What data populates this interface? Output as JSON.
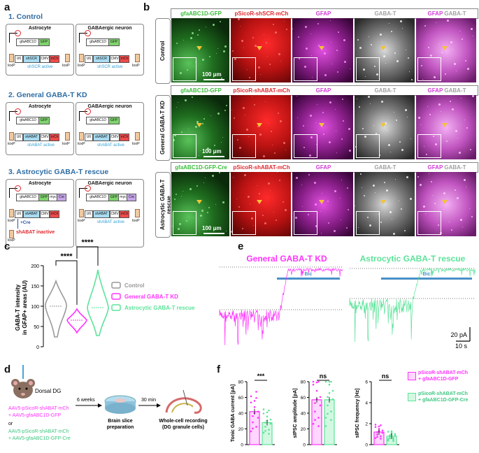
{
  "colors": {
    "blue_heading": "#2e6da4",
    "gfp_green": "#6bd36b",
    "mch_red": "#e0282e",
    "gfap_magenta": "#d23cd6",
    "gabat_grey": "#a0a0a0",
    "kd_magenta": "#ff33ff",
    "rescue_green": "#5de39a",
    "control_grey": "#999999",
    "bic_blue": "#4a90c8",
    "arrow_yellow": "#f3c335"
  },
  "panel_a": {
    "label": "a",
    "sections": [
      {
        "title": "1. Control",
        "left": {
          "cell": "Astrocyte",
          "top_construct": "gfaABC1D",
          "top_gene": "GFP",
          "bottom": [
            "U6",
            "shSCR",
            "CMV",
            "mCh"
          ],
          "loxp_left": "loxP",
          "loxp_right": "loxP",
          "status": "shSCR active"
        },
        "right": {
          "cell": "GABAergic neuron",
          "top_construct": "gfaABC1D",
          "top_gene": "GFP",
          "bottom": [
            "U6",
            "shSCR",
            "CMV",
            "mCh"
          ],
          "loxp_left": "loxP",
          "loxp_right": "loxP",
          "status": "shSCR active"
        }
      },
      {
        "title": "2. General GABA-T KD",
        "left": {
          "cell": "Astrocyte",
          "top_construct": "gfaABC1D",
          "top_gene": "GFP",
          "bottom": [
            "U6",
            "shABAT",
            "CMV",
            "mCh"
          ],
          "loxp_left": "loxP",
          "loxp_right": "loxP",
          "status": "shABAT active"
        },
        "right": {
          "cell": "GABAergic neuron",
          "top_construct": "gfaABC1D",
          "top_gene": "GFP",
          "bottom": [
            "U6",
            "shABAT",
            "CMV",
            "mCh"
          ],
          "loxp_left": "loxP",
          "loxp_right": "loxP",
          "status": "shABAT active"
        }
      },
      {
        "title": "3. Astrocytic GABA-T rescue",
        "left": {
          "cell": "Astrocyte",
          "top_construct": "gfaABC1D",
          "top_gene": "GFP",
          "top_extra": [
            "myc",
            "Cre"
          ],
          "bottom": [
            "U6",
            "shABAT",
            "CMV",
            "mCh"
          ],
          "loxp_left": "loxP",
          "cre": "+Cre",
          "status_inactive": "shABAT inactive",
          "loxp_bottom": "loxP"
        },
        "right": {
          "cell": "GABAergic neuron",
          "top_construct": "gfaABC1D",
          "top_gene": "GFP",
          "top_extra": [
            "myc",
            "Cre"
          ],
          "bottom": [
            "U6",
            "shABAT",
            "CMV",
            "mCh"
          ],
          "loxp_left": "loxP",
          "loxp_right": "loxP",
          "status": "shABAT active"
        }
      }
    ]
  },
  "panel_b": {
    "label": "b",
    "rows": [
      {
        "name": "Control",
        "headers": [
          "gfaABC1D-GFP",
          "pSicoR-shSCR-mCh",
          "GFAP",
          "GABA-T",
          "GFAP",
          "GABA-T"
        ],
        "scale": "100 μm"
      },
      {
        "name": "General GABA-T KD",
        "headers": [
          "gfaABC1D-GFP",
          "pSicoR-shABAT-mCh",
          "GFAP",
          "GABA-T",
          "GFAP",
          "GABA-T"
        ],
        "scale": "100 μm"
      },
      {
        "name": "Astrocytic GABA-T rescue",
        "headers": [
          "gfaABC1D-GFP-Cre",
          "pSicoR-shABAT-mCh",
          "GFAP",
          "GABA-T",
          "GFAP",
          "GABA-T"
        ],
        "scale": "100 μm"
      }
    ]
  },
  "panel_c": {
    "label": "c",
    "ylabel_line1": "GABA-T intensity",
    "ylabel_line2": "in GFAP+ areas (AU)",
    "yticks": [
      "0",
      "50",
      "100",
      "150",
      "200"
    ],
    "sig1": "****",
    "sig2": "****",
    "legend": [
      "Control",
      "General GABA-T KD",
      "Astrocytic GABA-T rescue"
    ]
  },
  "panel_d": {
    "label": "d",
    "region": "Dorsal DG",
    "inj_kd_1": "AAV5-pSicoR-shABAT-mCh",
    "inj_kd_2": "+ AAV5-gfaABC1D-GFP",
    "or": "or",
    "inj_rs_1": "AAV5-pSicoR-shABAT-mCh",
    "inj_rs_2": "+ AAV5-gfaABC1D-GFP-Cre",
    "weeks": "6 weeks",
    "slice": "Brain slice",
    "slice2": "preparation",
    "min": "30 min",
    "rec": "Whole-cell recording",
    "rec2": "(DG granule cells)"
  },
  "panel_e": {
    "label": "e",
    "title_kd": "General GABA-T KD",
    "title_rs": "Astrocytic GABA-T rescue",
    "bic": "Bic",
    "scale_y": "20 pA",
    "scale_x": "10 s"
  },
  "panel_f": {
    "label": "f",
    "plots": [
      {
        "ylabel": "Tonic GABA current [pA]",
        "yticks": [
          "0",
          "20",
          "40",
          "60",
          "80"
        ],
        "sig": "***"
      },
      {
        "ylabel": "sIPSC amplitude [pA]",
        "yticks": [
          "0",
          "20",
          "40",
          "60",
          "80"
        ],
        "sig": "ns"
      },
      {
        "ylabel": "sIPSC frequency [Hz]",
        "yticks": [
          "0",
          "2",
          "4",
          "6"
        ],
        "sig": "ns"
      }
    ],
    "legend_kd_1": "pSicoR-shABAT-mCh",
    "legend_kd_2": "+ gfaABC1D-GFP",
    "legend_rs_1": "pSicoR-shABAT-mCh",
    "legend_rs_2": "+ gfaABC1D-GFP-Cre"
  }
}
